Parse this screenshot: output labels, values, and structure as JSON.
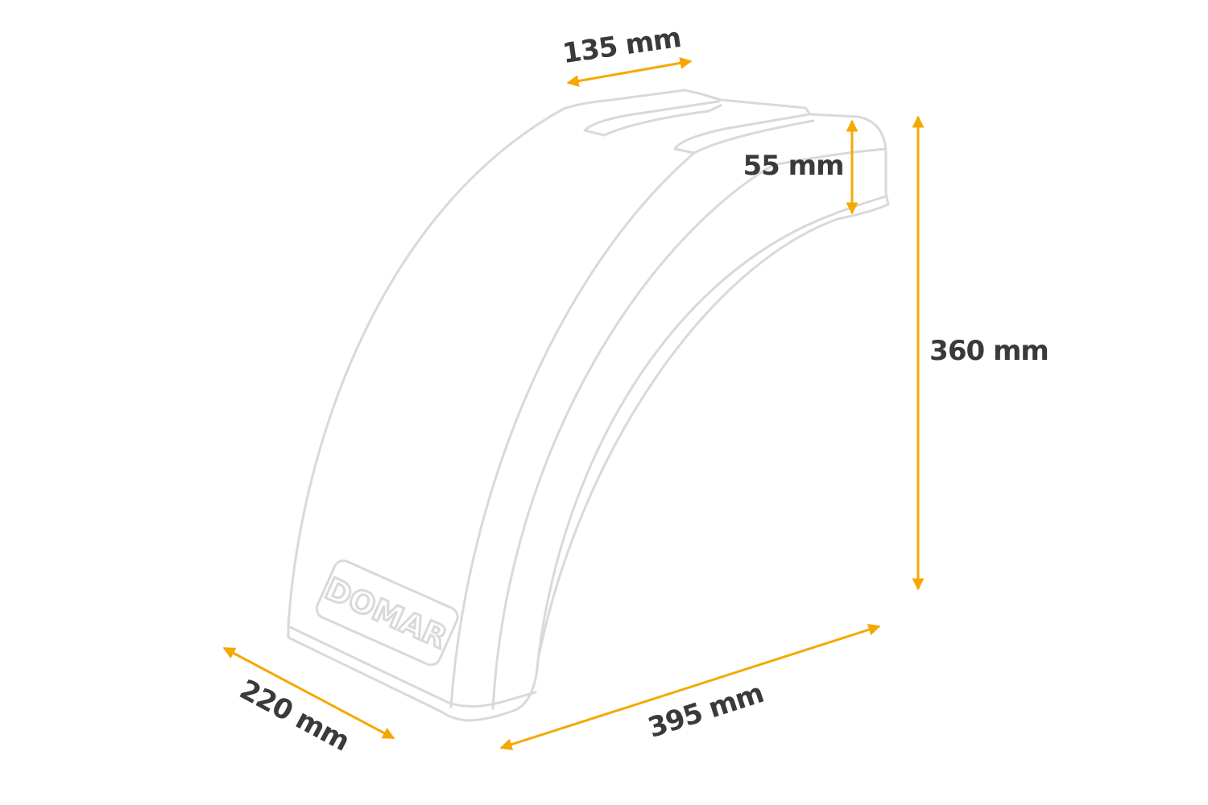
{
  "product": {
    "logo_text": "DOMAR",
    "outline_color": "#d9d9d9"
  },
  "dimensions": {
    "top_width": "135 mm",
    "lip_height": "55 mm",
    "height": "360 mm",
    "length": "395 mm",
    "width": "220 mm"
  },
  "colors": {
    "dimension_arrow": "#f5a800",
    "label_text": "#3a3a3a"
  }
}
